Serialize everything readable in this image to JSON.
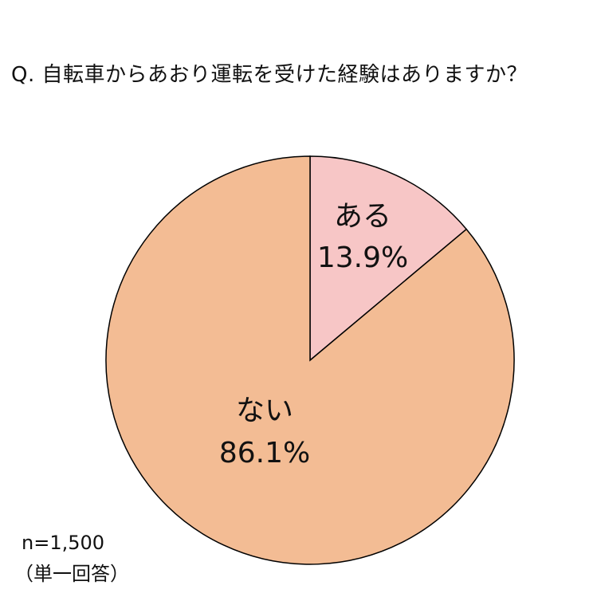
{
  "title": "Q. 自転車からあおり運転を受けた経験はありますか？",
  "sample_size": "n=1,500",
  "answer_type": "（単一回答）",
  "colors": {
    "yes": "#f7c6c6",
    "no": "#f3bc94",
    "outline": "#000000"
  },
  "chart_data": {
    "type": "pie",
    "title": "Q. 自転車からあおり運転を受けた経験はありますか？",
    "slices": [
      {
        "label": "ある",
        "value": 13.9,
        "value_label": "13.9%"
      },
      {
        "label": "ない",
        "value": 86.1,
        "value_label": "86.1%"
      }
    ],
    "start": "12 o'clock",
    "direction": "clockwise"
  }
}
